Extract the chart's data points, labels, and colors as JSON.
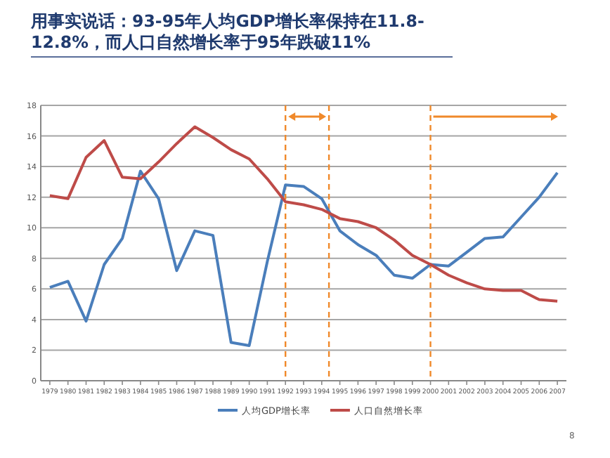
{
  "chart_data": {
    "type": "line",
    "title": "用事实说话：93-95年人均GDP增长率保持在11.8-12.8%，而人口自然增长率于95年跌破11%",
    "x": [
      1979,
      1980,
      1981,
      1982,
      1983,
      1984,
      1985,
      1986,
      1987,
      1988,
      1989,
      1990,
      1991,
      1992,
      1993,
      1994,
      1995,
      1996,
      1997,
      1998,
      1999,
      2000,
      2001,
      2002,
      2003,
      2004,
      2005,
      2006,
      2007
    ],
    "series": [
      {
        "name": "人均GDP增长率",
        "color": "#4a7ebb",
        "values": [
          6.1,
          6.5,
          3.9,
          7.6,
          9.3,
          13.7,
          11.9,
          7.2,
          9.8,
          9.5,
          2.5,
          2.3,
          7.8,
          12.8,
          12.7,
          11.9,
          9.8,
          8.9,
          8.2,
          6.9,
          6.7,
          7.6,
          7.5,
          8.4,
          9.3,
          9.4,
          10.7,
          12.0,
          13.6
        ]
      },
      {
        "name": "人口自然增长率",
        "color": "#be4b48",
        "values": [
          12.1,
          11.9,
          14.6,
          15.7,
          13.3,
          13.2,
          14.3,
          15.5,
          16.6,
          15.9,
          15.1,
          14.5,
          13.2,
          11.7,
          11.5,
          11.2,
          10.6,
          10.4,
          10.0,
          9.2,
          8.2,
          7.6,
          6.9,
          6.4,
          6.0,
          5.9,
          5.9,
          5.3,
          5.2
        ]
      }
    ],
    "xlim": [
      1978.5,
      2007.5
    ],
    "xticks": [
      1979,
      1980,
      1981,
      1982,
      1983,
      1984,
      1985,
      1986,
      1987,
      1988,
      1989,
      1990,
      1991,
      1992,
      1993,
      1994,
      1995,
      1996,
      1997,
      1998,
      1999,
      2000,
      2001,
      2002,
      2003,
      2004,
      2005,
      2006,
      2007
    ],
    "ylim": [
      0,
      18
    ],
    "yticks": [
      0,
      2,
      4,
      6,
      8,
      10,
      12,
      14,
      16,
      18
    ],
    "ref_lines": [
      {
        "axis": "x",
        "value": 1992,
        "color": "#f0892a",
        "line_style": "dashed"
      },
      {
        "axis": "x",
        "value": 1994.4,
        "color": "#f0892a",
        "line_style": "dashed"
      },
      {
        "axis": "x",
        "value": 2000,
        "color": "#f0892a",
        "line_style": "dashed"
      }
    ],
    "annotations": [
      "8"
    ],
    "grid": "y",
    "legend": "bottom",
    "marker": "none",
    "line_style": "solid"
  }
}
